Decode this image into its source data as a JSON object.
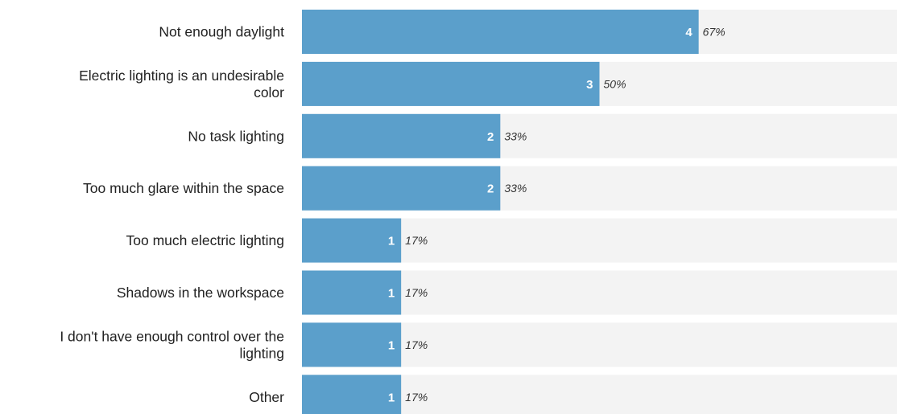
{
  "chart_data": {
    "type": "bar",
    "orientation": "horizontal",
    "categories": [
      "Not enough daylight",
      "Electric lighting is an undesirable color",
      "No task lighting",
      "Too much glare within the space",
      "Too much electric lighting",
      "Shadows in the workspace",
      "I don't have enough control over the lighting",
      "Other"
    ],
    "category_lines": [
      [
        "Not enough daylight"
      ],
      [
        "Electric lighting is an undesirable",
        "color"
      ],
      [
        "No task lighting"
      ],
      [
        "Too much glare within the space"
      ],
      [
        "Too much electric lighting"
      ],
      [
        "Shadows in the workspace"
      ],
      [
        "I don't have enough control over the",
        "lighting"
      ],
      [
        "Other"
      ]
    ],
    "values": [
      4,
      3,
      2,
      2,
      1,
      1,
      1,
      1
    ],
    "percent_labels": [
      "67%",
      "50%",
      "33%",
      "33%",
      "17%",
      "17%",
      "17%",
      "17%"
    ],
    "xlim": [
      0,
      6
    ],
    "grid": false,
    "colors": {
      "bar": "#5b9fcb",
      "track": "#f3f3f3",
      "count_text": "#ffffff"
    }
  }
}
